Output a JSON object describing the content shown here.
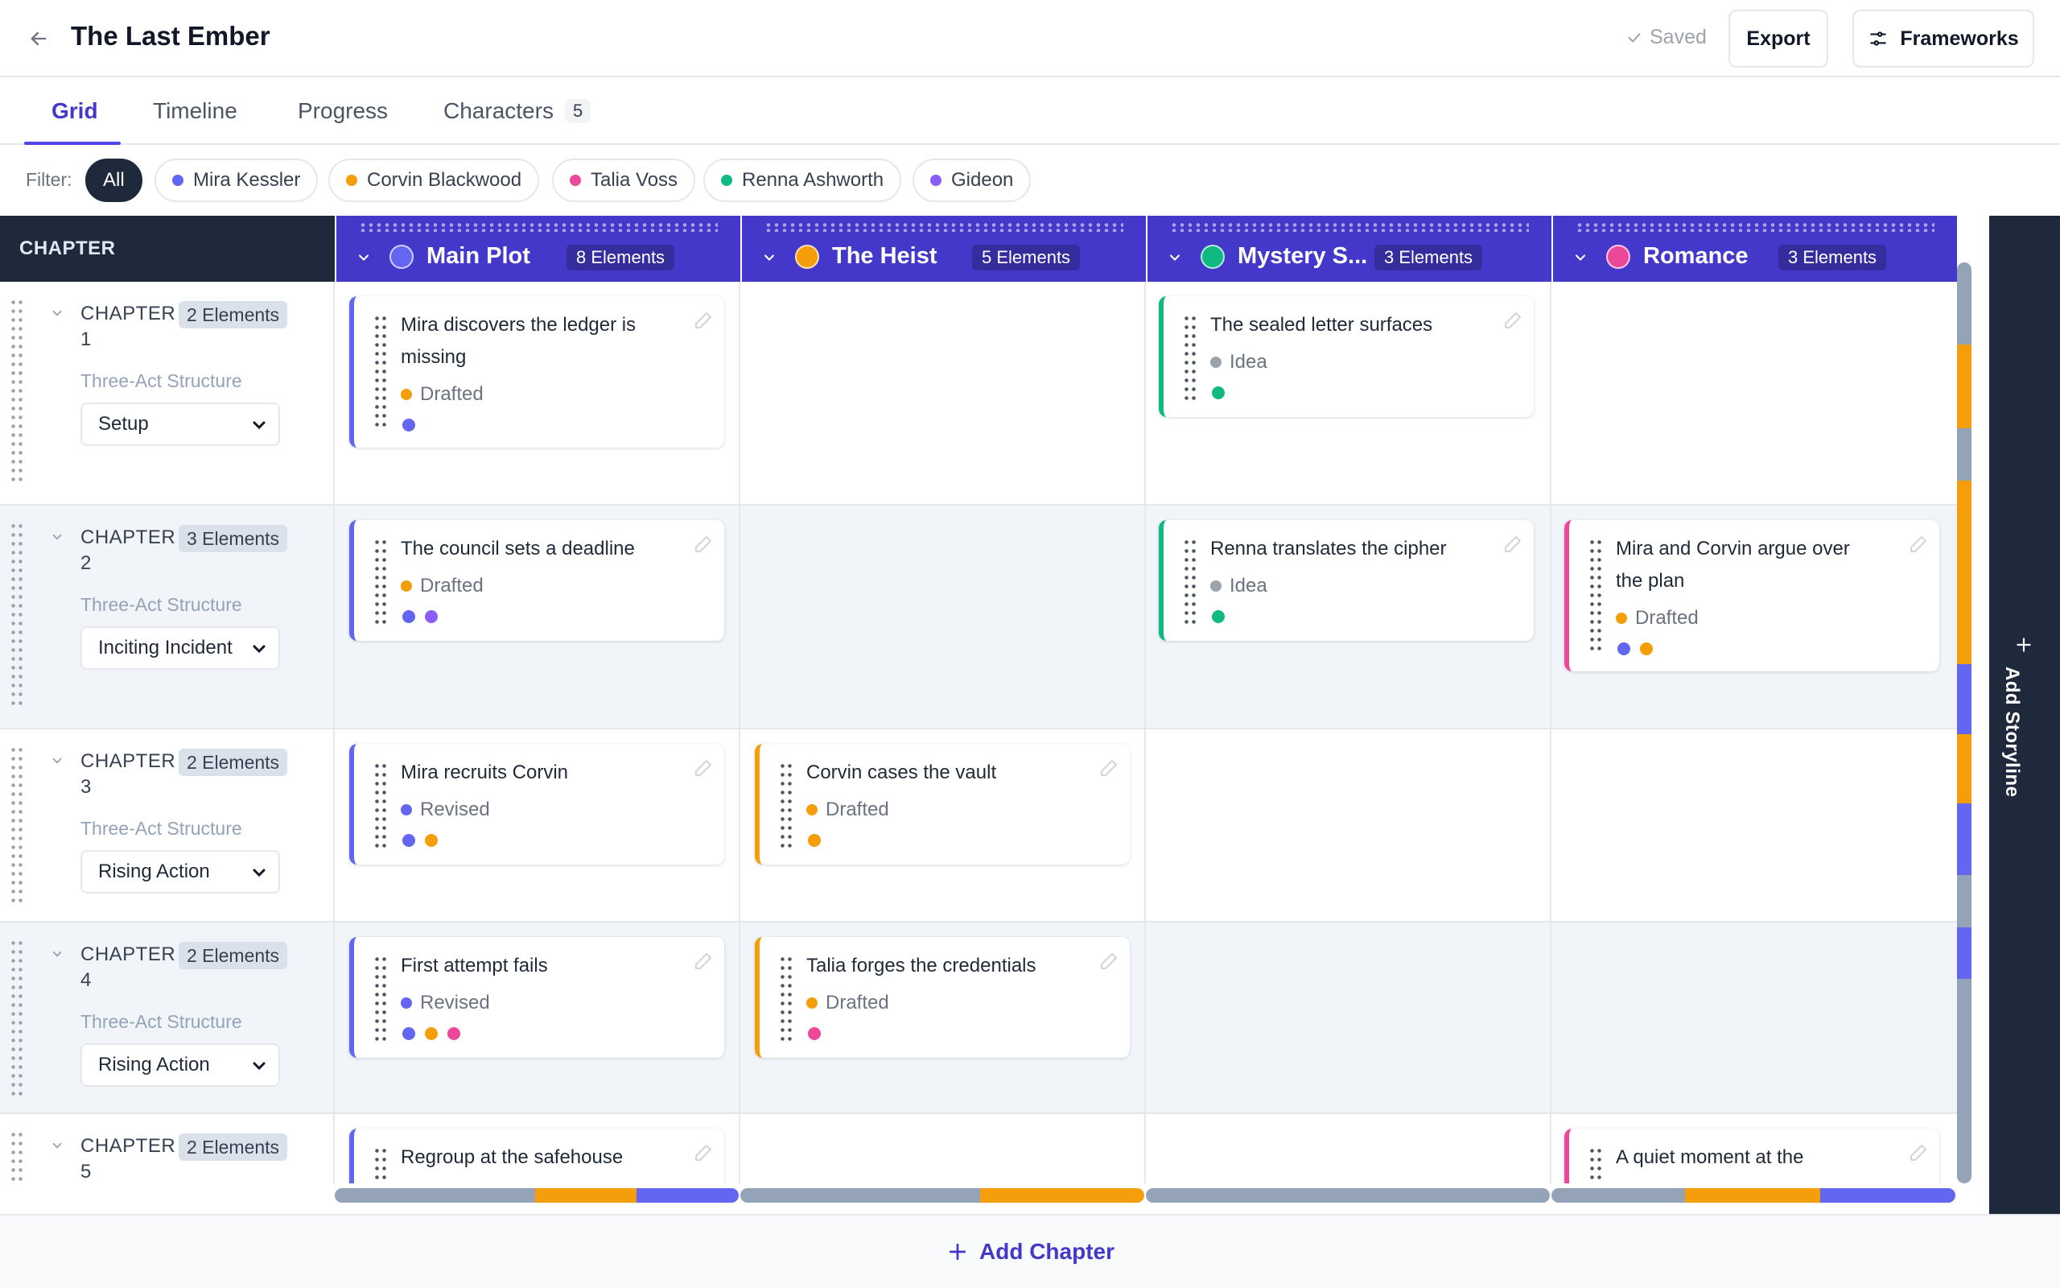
{
  "header": {
    "title": "The Last Ember",
    "saved": "Saved",
    "export": "Export",
    "frameworks": "Frameworks"
  },
  "tabs": [
    {
      "label": "Grid"
    },
    {
      "label": "Timeline"
    },
    {
      "label": "Progress"
    },
    {
      "label": "Characters",
      "count": "5"
    }
  ],
  "filter": {
    "label": "Filter:",
    "chips": [
      {
        "label": "All"
      },
      {
        "label": "Mira Kessler",
        "color": "#6366f1"
      },
      {
        "label": "Corvin Blackwood",
        "color": "#f59e0b"
      },
      {
        "label": "Talia Voss",
        "color": "#ec4899"
      },
      {
        "label": "Renna Ashworth",
        "color": "#10b981"
      },
      {
        "label": "Gideon",
        "color": "#8b5cf6"
      }
    ]
  },
  "grid": {
    "chapter_header": "CHAPTER",
    "storylines": [
      {
        "name": "Main Plot",
        "count": "8 Elements",
        "color": "#6366f1"
      },
      {
        "name": "The Heist",
        "count": "5 Elements",
        "color": "#f59e0b"
      },
      {
        "name": "Mystery S...",
        "count": "3 Elements",
        "color": "#10b981"
      },
      {
        "name": "Romance",
        "count": "3 Elements",
        "color": "#ec4899"
      }
    ],
    "framework_label": "Three-Act Structure",
    "chapters": [
      {
        "label": "CHAPTER 1",
        "count": "2 Elements",
        "framework": "Setup"
      },
      {
        "label": "CHAPTER 2",
        "count": "3 Elements",
        "framework": "Inciting Incident"
      },
      {
        "label": "CHAPTER 3",
        "count": "2 Elements",
        "framework": "Rising Action"
      },
      {
        "label": "CHAPTER 4",
        "count": "2 Elements",
        "framework": "Rising Action"
      },
      {
        "label": "CHAPTER 5",
        "count": "2 Elements",
        "framework": ""
      }
    ],
    "cards": [
      {
        "title": "Mira discovers the ledger is missing",
        "status": "Drafted",
        "status_color": "#f59e0b",
        "chars": [
          "#6366f1"
        ]
      },
      {
        "title": "The sealed letter surfaces",
        "status": "Idea",
        "status_color": "#9ca3af",
        "chars": [
          "#10b981"
        ]
      },
      {
        "title": "The council sets a deadline",
        "status": "Drafted",
        "status_color": "#f59e0b",
        "chars": [
          "#6366f1",
          "#8b5cf6"
        ]
      },
      {
        "title": "Renna translates the cipher",
        "status": "Idea",
        "status_color": "#9ca3af",
        "chars": [
          "#10b981"
        ]
      },
      {
        "title": "Mira and Corvin argue over the plan",
        "status": "Drafted",
        "status_color": "#f59e0b",
        "chars": [
          "#6366f1",
          "#f59e0b"
        ]
      },
      {
        "title": "Mira recruits Corvin",
        "status": "Revised",
        "status_color": "#6366f1",
        "chars": [
          "#6366f1",
          "#f59e0b"
        ]
      },
      {
        "title": "Corvin cases the vault",
        "status": "Drafted",
        "status_color": "#f59e0b",
        "chars": [
          "#f59e0b"
        ]
      },
      {
        "title": "First attempt fails",
        "status": "Revised",
        "status_color": "#6366f1",
        "chars": [
          "#6366f1",
          "#f59e0b",
          "#ec4899"
        ]
      },
      {
        "title": "Talia forges the credentials",
        "status": "Drafted",
        "status_color": "#f59e0b",
        "chars": [
          "#ec4899"
        ]
      },
      {
        "title": "Regroup at the safehouse",
        "status": "",
        "status_color": "#6366f1",
        "chars": []
      },
      {
        "title": "A quiet moment at the",
        "status": "",
        "status_color": "#ec4899",
        "chars": []
      }
    ]
  },
  "add_storyline": "Add Storyline",
  "add_chapter": "Add Chapter",
  "colors": {
    "accent": "#4338ca",
    "dark": "#1e293b"
  }
}
